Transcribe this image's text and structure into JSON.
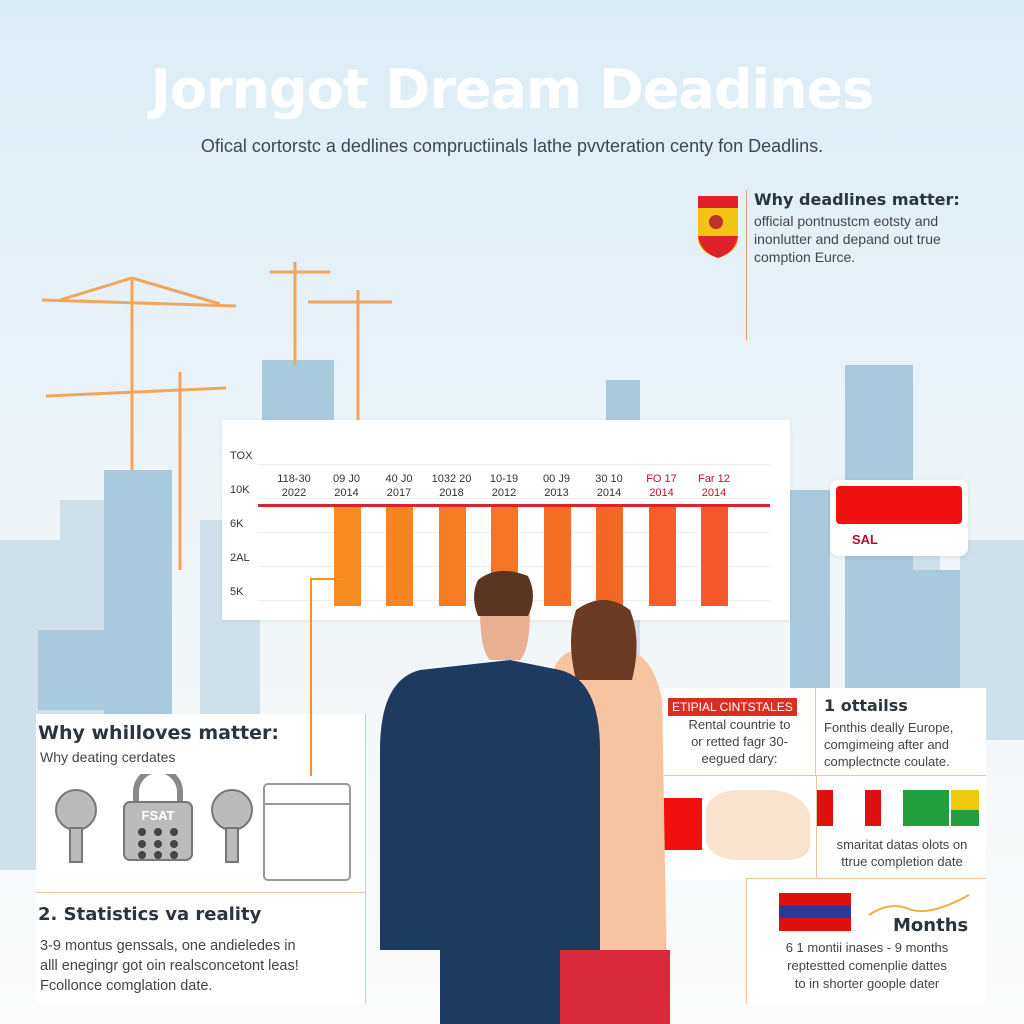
{
  "header": {
    "title": "Jorngot Dream Deadines",
    "subtitle": "Ofical cortorstc a dedlines compructiinals lathe pvvteration centy fon Deadlins."
  },
  "callout_top": {
    "title": "Why deadlines matter:",
    "lines": [
      "official pontnustcm eotsty and",
      "inonlutter and depand out true",
      "comption Eurce."
    ],
    "icon": "spain-flag-shield-icon"
  },
  "sal_card": {
    "label": "SAL",
    "color": "#f01010"
  },
  "chart_data": {
    "type": "bar",
    "yticks": [
      "TOX",
      "10K",
      "6K",
      "2AL",
      "5K"
    ],
    "categories": [
      [
        "118-30",
        "2022"
      ],
      [
        "09 J0",
        "2014"
      ],
      [
        "40 J0",
        "2017"
      ],
      [
        "1032 20",
        "2018"
      ],
      [
        "10-19",
        "2012"
      ],
      [
        "00 J9",
        "2013"
      ],
      [
        "30 10",
        "2014"
      ],
      [
        "FO 17",
        "2014"
      ],
      [
        "Far 12",
        "2014"
      ]
    ],
    "values": [
      null,
      8,
      8,
      8,
      8,
      8,
      8,
      8,
      8
    ],
    "reference_line": 8,
    "colors": {
      "bars_start": "#f7921e",
      "bars_end": "#f4582a",
      "reference_line": "#e0202a",
      "highlight_labels": "#c0102a"
    },
    "grid": true
  },
  "left_panel": {
    "title": "Why whilloves matter:",
    "subtitle": "Why deating cerdates",
    "lock_label": "FSAT",
    "icons": [
      "key-icon",
      "padlock-icon",
      "key-icon",
      "calendar-icon"
    ]
  },
  "stats_panel": {
    "title": "2. Statistics va reality",
    "lines": [
      "3-9 montus genssals, one andieledes in",
      "alll enegingr got oin realsconcetont leas!",
      "Fcollonce comglation date."
    ]
  },
  "right_top_left": {
    "badge": "ETIPIAL CINTSTALES",
    "lines": [
      "Rental countrie to",
      "or retted fagr 30-",
      "eegued dary:"
    ]
  },
  "right_top_right": {
    "title": "1 ottailss",
    "lines": [
      "Fonthis deally Europe,",
      "comgimeing after and",
      "complectncte coulate."
    ]
  },
  "flags_panel": {
    "lines": [
      "smaritat datas olots on",
      "ttrue completion date"
    ],
    "icons": [
      "canada-flag-icon",
      "brazil-flag-icon",
      "flag-icon"
    ]
  },
  "months_panel": {
    "title": "Months",
    "lines": [
      "6 1 montii inases - 9 months",
      "reptestted comenplie dattes",
      "to in shorter goople dater"
    ],
    "icons": [
      "uk-flag-icon",
      "trend-arrow-icon"
    ]
  },
  "colors": {
    "accent": "#f7921e",
    "red": "#e0202a",
    "navy": "#1f3a5f"
  }
}
